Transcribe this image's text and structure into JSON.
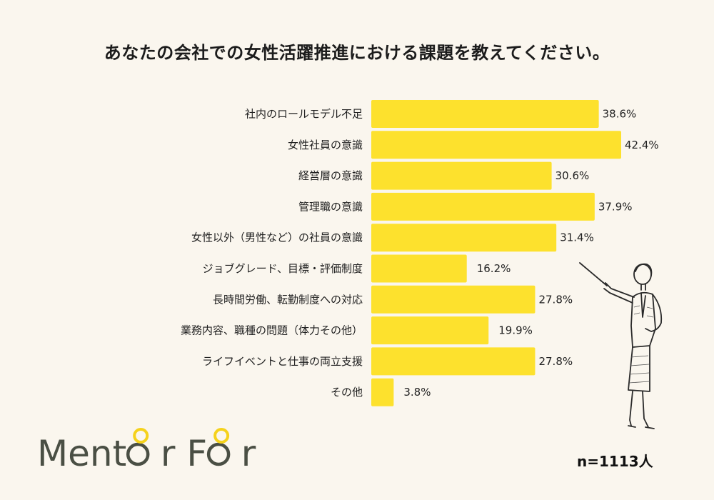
{
  "chart_data": {
    "type": "bar",
    "orientation": "horizontal",
    "title": "あなたの会社での女性活躍推進における課題を教えてください。",
    "categories": [
      "社内のロールモデル不足",
      "女性社員の意識",
      "経営層の意識",
      "管理職の意識",
      "女性以外（男性など）の社員の意識",
      "ジョブグレード、目標・評価制度",
      "長時間労働、転勤制度への対応",
      "業務内容、職種の問題（体力その他）",
      "ライフイベントと仕事の両立支援",
      "その他"
    ],
    "values": [
      38.6,
      42.4,
      30.6,
      37.9,
      31.4,
      16.2,
      27.8,
      19.9,
      27.8,
      3.8
    ],
    "value_labels": [
      "38.6%",
      "42.4%",
      "30.6%",
      "37.9%",
      "31.4%",
      "16.2%",
      "27.8%",
      "19.9%",
      "27.8%",
      "3.8%"
    ],
    "xlim": [
      0,
      42.4
    ],
    "grid": false,
    "bar_color": "#fde12d"
  },
  "sample_size": "n=1113人",
  "logo": {
    "text_part1": "Ment",
    "text_part2": "r F",
    "text_part3": "r",
    "text_color": "#4a4f44",
    "accent_color": "#f5d21c"
  },
  "illustration_icon": "businesswoman-pointing-icon",
  "background_color": "#faf6ee"
}
